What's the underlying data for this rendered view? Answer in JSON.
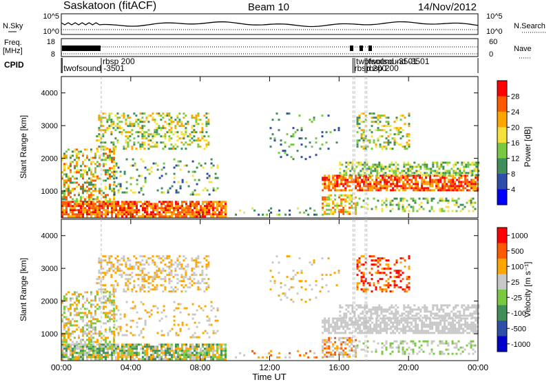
{
  "header": {
    "station": "Saskatoon (fitACF)",
    "beam": "Beam 10",
    "date": "14/Nov/2012"
  },
  "sky_panel": {
    "left_label": "N.Sky",
    "right_label": "N.Search",
    "left_ticks": [
      "10^5",
      "10^0"
    ],
    "right_ticks": [
      "10^5",
      "10^0"
    ]
  },
  "freq_panel": {
    "left_label_1": "Freq.",
    "left_label_2": "[MHz]",
    "right_label": "Nave",
    "left_ticks": [
      "18",
      "8"
    ],
    "right_ticks": [
      "60",
      "0"
    ]
  },
  "cpid_panel": {
    "label": "CPID",
    "events": [
      {
        "text": "twofsound -3501",
        "t": 0.05
      },
      {
        "text": "rbsp 200",
        "t": 2.3
      },
      {
        "text": "rbsp 200",
        "t": 16.8
      },
      {
        "text": "twofsound -3501",
        "t": 16.9
      },
      {
        "text": "rbsp 200",
        "t": 17.5
      },
      {
        "text": "twofsound -3501",
        "t": 17.6
      }
    ]
  },
  "colors": {
    "power_scale": [
      "#0000ff",
      "#2e4ea8",
      "#3f8f5a",
      "#7ac943",
      "#f5e13b",
      "#ffa500",
      "#ff5a00",
      "#ff0000"
    ],
    "velocity_scale": [
      "#0000cc",
      "#2e4ea8",
      "#3f8f5a",
      "#7ac943",
      "#c8c8c8",
      "#ffa500",
      "#ff5a00",
      "#ff0000"
    ]
  },
  "chart_data": [
    {
      "type": "heatmap",
      "name": "Power",
      "ylabel": "Slant Range [km]",
      "x_domain_hours": [
        0,
        24
      ],
      "xticks": [
        "00:00",
        "04:00",
        "08:00",
        "12:00",
        "16:00",
        "20:00",
        "00:00"
      ],
      "ylim": [
        180,
        4500
      ],
      "yticks": [
        1000,
        2000,
        3000,
        4000
      ],
      "colorbar_label": "Power [dB]",
      "colorbar_ticks": [
        "4",
        "8",
        "12",
        "16",
        "20",
        "24",
        "28"
      ],
      "colorbar_range": [
        0,
        30
      ]
    },
    {
      "type": "heatmap",
      "name": "Velocity",
      "xlabel": "Time UT",
      "ylabel": "Slant Range [km]",
      "x_domain_hours": [
        0,
        24
      ],
      "xticks": [
        "00:00",
        "04:00",
        "08:00",
        "12:00",
        "16:00",
        "20:00",
        "00:00"
      ],
      "ylim": [
        180,
        4500
      ],
      "yticks": [
        1000,
        2000,
        3000,
        4000
      ],
      "colorbar_label": "Velocity [m s⁻¹]",
      "colorbar_ticks": [
        "1000",
        "500",
        "100",
        "25",
        "-25",
        "-100",
        "-500",
        "-1000"
      ]
    }
  ]
}
